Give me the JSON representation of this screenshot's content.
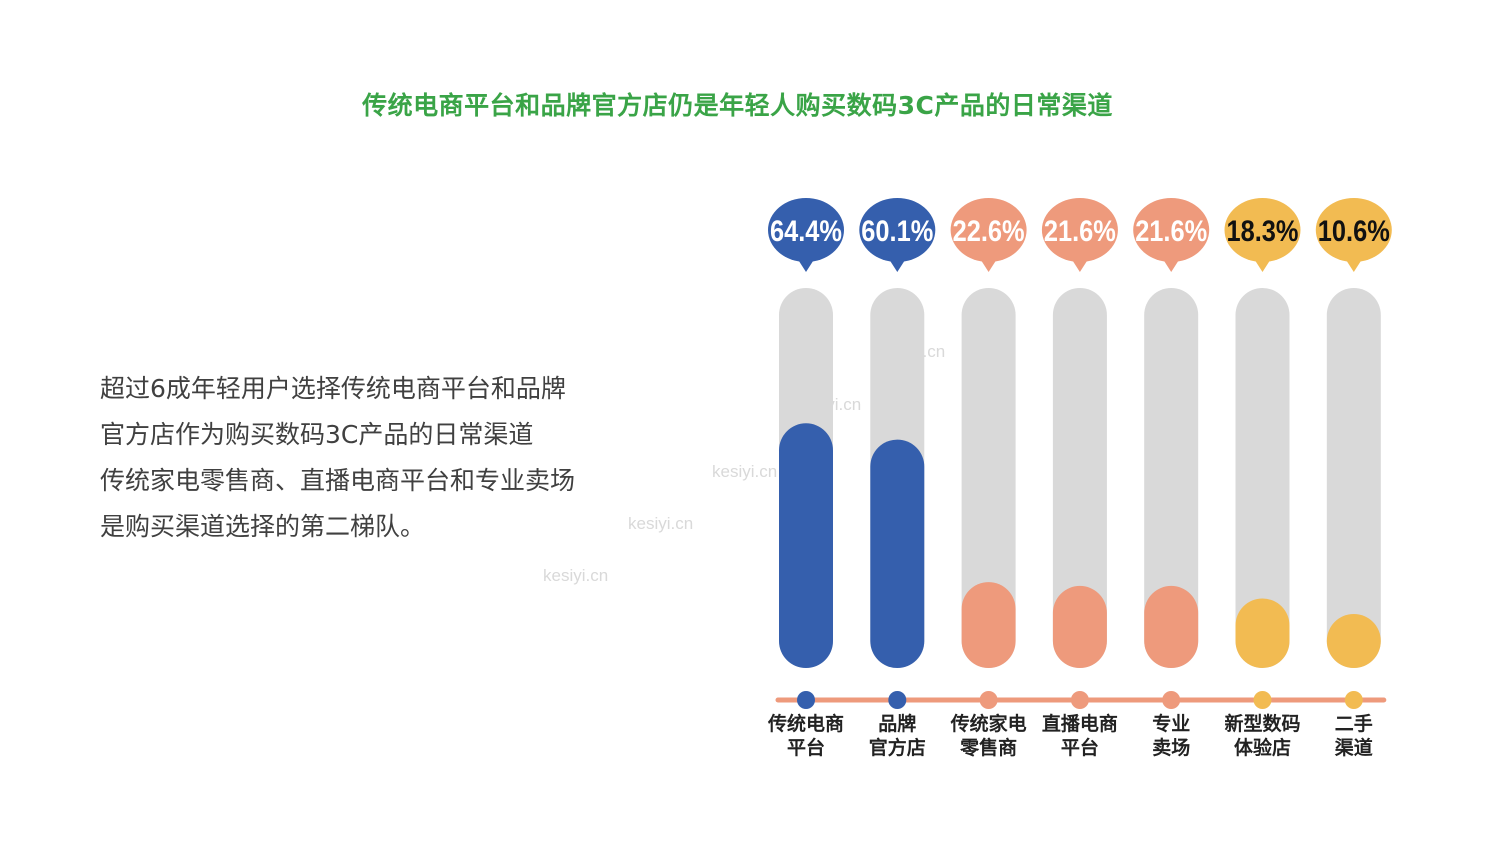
{
  "header": {
    "title": "传统电商平台和品牌官方店仍是年轻人购买数码3C产品的日常渠道"
  },
  "description": {
    "lines": [
      "超过6成年轻用户选择传统电商平台和品牌",
      "官方店作为购买数码3C产品的日常渠道",
      "传统家电零售商、直播电商平台和专业卖场",
      "是购买渠道选择的第二梯队。"
    ]
  },
  "watermark": {
    "text": "kesiyi.cn"
  },
  "colors": {
    "title": "#3aa447",
    "track": "#d9d9d9",
    "axis": "#ee9a7c",
    "blue": "#355fad",
    "salmon": "#ee9a7c",
    "yellow": "#f2bb52",
    "bubble_text_light": "#ffffff",
    "bubble_text_dark": "#111111"
  },
  "chart_data": {
    "type": "bar",
    "ylim": [
      0,
      100
    ],
    "categories": [
      "传统电商\n平台",
      "品牌\n官方店",
      "传统家电\n零售商",
      "直播电商\n平台",
      "专业\n卖场",
      "新型数码\n体验店",
      "二手\n渠道"
    ],
    "values": [
      64.4,
      60.1,
      22.6,
      21.6,
      21.6,
      18.3,
      10.6
    ],
    "labels": [
      "64.4%",
      "60.1%",
      "22.6%",
      "21.6%",
      "21.6%",
      "18.3%",
      "10.6%"
    ],
    "tiers": [
      "blue",
      "blue",
      "salmon",
      "salmon",
      "salmon",
      "yellow",
      "yellow"
    ]
  }
}
